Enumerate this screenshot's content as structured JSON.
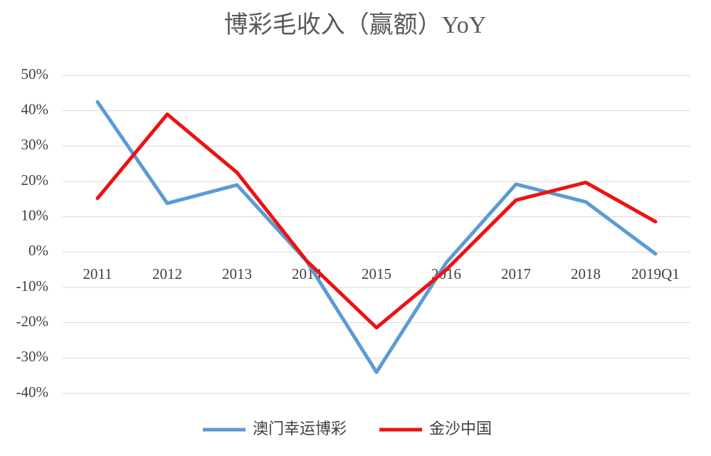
{
  "chart_data": {
    "type": "line",
    "title": "博彩毛收入（赢额）YoY",
    "categories": [
      "2011",
      "2012",
      "2013",
      "2014",
      "2015",
      "2016",
      "2017",
      "2018",
      "2019Q1"
    ],
    "series": [
      {
        "name": "澳门幸运博彩",
        "color": "#5b9bd5",
        "values": [
          42.5,
          13.8,
          19,
          -2.6,
          -34,
          -3,
          19.2,
          14.2,
          -0.5
        ]
      },
      {
        "name": "金沙中国",
        "color": "#ee1111",
        "values": [
          15.2,
          39,
          22.5,
          -2.5,
          -21.4,
          -5,
          14.7,
          19.7,
          8.6
        ]
      }
    ],
    "ylim": [
      -40,
      50
    ],
    "yticks": [
      {
        "value": -40,
        "label": "-40%"
      },
      {
        "value": -30,
        "label": "-30%"
      },
      {
        "value": -20,
        "label": "-20%"
      },
      {
        "value": -10,
        "label": "-10%"
      },
      {
        "value": 0,
        "label": "0%"
      },
      {
        "value": 10,
        "label": "10%"
      },
      {
        "value": 20,
        "label": "20%"
      },
      {
        "value": 30,
        "label": "30%"
      },
      {
        "value": 40,
        "label": "40%"
      },
      {
        "value": 50,
        "label": "50%"
      }
    ],
    "grid": true,
    "legend": "bottom"
  }
}
